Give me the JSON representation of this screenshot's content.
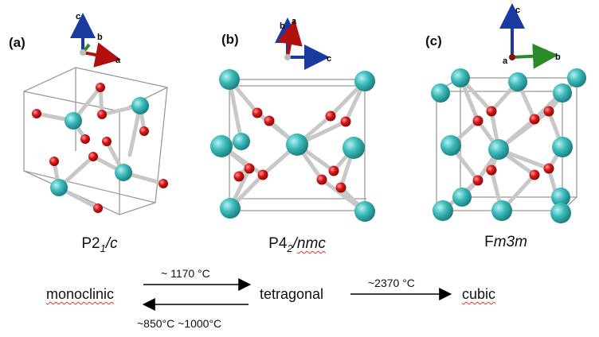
{
  "panels": [
    {
      "label": "(a)",
      "space_group": {
        "prefix": "P2",
        "sub": "1",
        "slash": "/",
        "suffix": "c"
      }
    },
    {
      "label": "(b)",
      "space_group": {
        "prefix": "P4",
        "sub": "2",
        "slash": "/",
        "suffix": "nmc"
      }
    },
    {
      "label": "(c)",
      "space_group": {
        "prefix": "F",
        "sub": "",
        "slash": "",
        "suffix": "m3m"
      }
    }
  ],
  "axes": {
    "a": {
      "labels": [
        "c",
        "b",
        "a"
      ]
    },
    "b": {
      "labels": [
        "b",
        "a",
        "c"
      ]
    },
    "c": {
      "labels": [
        "c",
        "a",
        "b"
      ]
    }
  },
  "phases": {
    "monoclinic": "monoclinic",
    "tetragonal": "tetragonal",
    "cubic": "cubic"
  },
  "transitions": {
    "mono_to_tet": "~ 1170 °C",
    "tet_to_mono": "~850°C ~1000°C",
    "tet_to_cubic": "~2370 °C"
  },
  "colors": {
    "cation": "#35b8b8",
    "oxygen": "#d01010",
    "bond": "#c8c8c8",
    "cell": "#9a9a9a",
    "axis_x": "#2a8a2a",
    "axis_y": "#1a3aa0",
    "axis_red": "#b01010"
  }
}
